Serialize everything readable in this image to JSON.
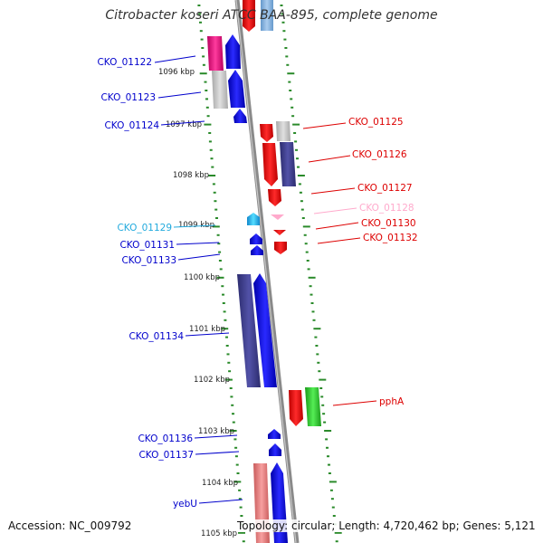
{
  "title": "Citrobacter koseri ATCC BAA-895, complete genome",
  "footer": {
    "accession": "Accession: NC_009792",
    "topology": "Topology: circular; Length: 4,720,462 bp; Genes: 5,121"
  },
  "colors": {
    "forward_gene": "#0000ee",
    "forward_gene_alt": "#3f3f99",
    "reverse_gene": "#ee0000",
    "reverse_gene_alt": "#e8197f",
    "pseudo_gene": "#ffaacc",
    "rna_gene": "#33cc33",
    "cyan_gene": "#22bbee",
    "scale_ticks": "#2a8a2a",
    "backbone": "#888888"
  },
  "ticks": [
    {
      "label": "1096 kbp"
    },
    {
      "label": "1097 kbp"
    },
    {
      "label": "1098 kbp"
    },
    {
      "label": "1099 kbp"
    },
    {
      "label": "1100 kbp"
    },
    {
      "label": "1101 kbp"
    },
    {
      "label": "1102 kbp"
    },
    {
      "label": "1103 kbp"
    },
    {
      "label": "1104 kbp"
    },
    {
      "label": "1105 kbp"
    }
  ],
  "genes_left": [
    {
      "name": "CKO_01122",
      "color": "#0000cc"
    },
    {
      "name": "CKO_01123",
      "color": "#0000cc"
    },
    {
      "name": "CKO_01124",
      "color": "#0000cc"
    },
    {
      "name": "CKO_01129",
      "color": "#22aadd"
    },
    {
      "name": "CKO_01131",
      "color": "#0000cc"
    },
    {
      "name": "CKO_01133",
      "color": "#0000cc"
    },
    {
      "name": "CKO_01134",
      "color": "#0000cc"
    },
    {
      "name": "CKO_01136",
      "color": "#0000cc"
    },
    {
      "name": "CKO_01137",
      "color": "#0000cc"
    },
    {
      "name": "yebU",
      "color": "#0000cc"
    }
  ],
  "genes_right": [
    {
      "name": "CKO_01125",
      "color": "#dd0000"
    },
    {
      "name": "CKO_01126",
      "color": "#dd0000"
    },
    {
      "name": "CKO_01127",
      "color": "#dd0000"
    },
    {
      "name": "CKO_01128",
      "color": "#ffaacc"
    },
    {
      "name": "CKO_01130",
      "color": "#dd0000"
    },
    {
      "name": "CKO_01132",
      "color": "#dd0000"
    },
    {
      "name": "pphA",
      "color": "#dd0000"
    }
  ]
}
